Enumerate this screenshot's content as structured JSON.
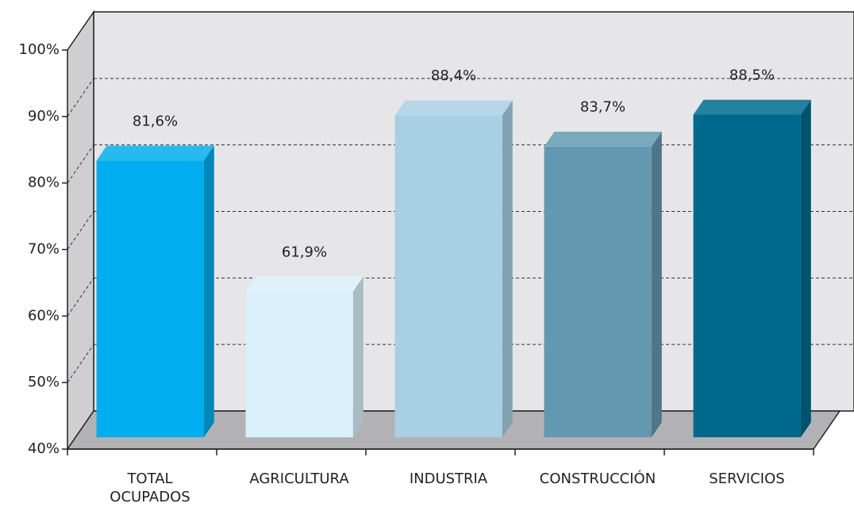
{
  "chart_data": {
    "type": "bar3d",
    "categories": [
      "TOTAL OCUPADOS",
      "AGRICULTURA",
      "INDUSTRIA",
      "CONSTRUCCIÓN",
      "SERVICIOS"
    ],
    "values": [
      81.6,
      61.9,
      88.4,
      83.7,
      88.5
    ],
    "value_labels": [
      "81,6%",
      "61,9%",
      "88,4%",
      "83,7%",
      "88,5%"
    ],
    "colors": [
      "#00aeef",
      "#d9f0fa",
      "#a8d0e4",
      "#6399b0",
      "#006a8e"
    ],
    "ylim": [
      40,
      100
    ],
    "yticks": [
      {
        "value": 40,
        "label": "40%"
      },
      {
        "value": 50,
        "label": "50%"
      },
      {
        "value": 60,
        "label": "60%"
      },
      {
        "value": 70,
        "label": "70%"
      },
      {
        "value": 80,
        "label": "80%"
      },
      {
        "value": 90,
        "label": "90%"
      },
      {
        "value": 100,
        "label": "100%"
      }
    ],
    "grid": true
  }
}
